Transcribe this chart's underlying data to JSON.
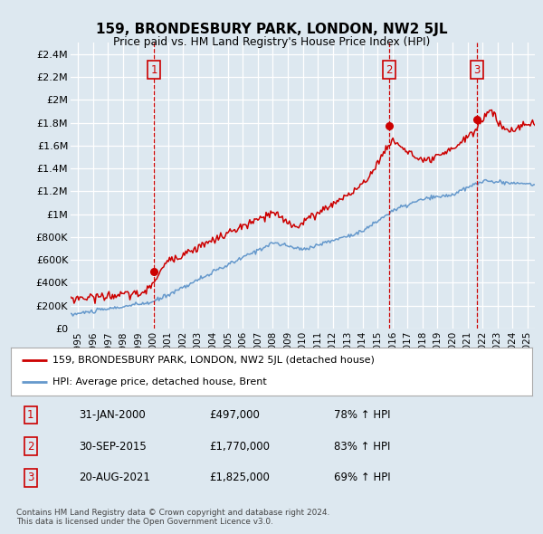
{
  "title": "159, BRONDESBURY PARK, LONDON, NW2 5JL",
  "subtitle": "Price paid vs. HM Land Registry's House Price Index (HPI)",
  "background_color": "#dde8f0",
  "plot_bg_color": "#dde8f0",
  "ylim": [
    0,
    2500000
  ],
  "yticks": [
    0,
    200000,
    400000,
    600000,
    800000,
    1000000,
    1200000,
    1400000,
    1600000,
    1800000,
    2000000,
    2200000,
    2400000
  ],
  "ytick_labels": [
    "£0",
    "£200K",
    "£400K",
    "£600K",
    "£800K",
    "£1M",
    "£1.2M",
    "£1.4M",
    "£1.6M",
    "£1.8M",
    "£2M",
    "£2.2M",
    "£2.4M"
  ],
  "xlim_start": 1994.5,
  "xlim_end": 2025.5,
  "sale_dates": [
    2000.08,
    2015.75,
    2021.63
  ],
  "sale_prices": [
    497000,
    1770000,
    1825000
  ],
  "sale_labels": [
    "1",
    "2",
    "3"
  ],
  "legend_entries": [
    "159, BRONDESBURY PARK, LONDON, NW2 5JL (detached house)",
    "HPI: Average price, detached house, Brent"
  ],
  "table_rows": [
    [
      "1",
      "31-JAN-2000",
      "£497,000",
      "78% ↑ HPI"
    ],
    [
      "2",
      "30-SEP-2015",
      "£1,770,000",
      "83% ↑ HPI"
    ],
    [
      "3",
      "20-AUG-2021",
      "£1,825,000",
      "69% ↑ HPI"
    ]
  ],
  "footer": "Contains HM Land Registry data © Crown copyright and database right 2024.\nThis data is licensed under the Open Government Licence v3.0.",
  "red_color": "#cc0000",
  "blue_color": "#6699cc",
  "grid_color": "#ffffff",
  "xtick_years": [
    1995,
    1996,
    1997,
    1998,
    1999,
    2000,
    2001,
    2002,
    2003,
    2004,
    2005,
    2006,
    2007,
    2008,
    2009,
    2010,
    2011,
    2012,
    2013,
    2014,
    2015,
    2016,
    2017,
    2018,
    2019,
    2020,
    2021,
    2022,
    2023,
    2024,
    2025
  ],
  "hpi_anchors_t": [
    1994.5,
    2000.0,
    2008.0,
    2010.0,
    2014.0,
    2016.0,
    2018.0,
    2020.0,
    2022.0,
    2025.5
  ],
  "hpi_anchors_v": [
    120000,
    230000,
    750000,
    690000,
    850000,
    1030000,
    1130000,
    1170000,
    1290000,
    1260000
  ],
  "prop_anchors_t": [
    1994.5,
    1999.5,
    2001.0,
    2008.0,
    2009.5,
    2014.0,
    2016.0,
    2018.0,
    2019.5,
    2021.5,
    2022.5,
    2023.5,
    2025.5
  ],
  "prop_anchors_v": [
    260000,
    310000,
    590000,
    1010000,
    890000,
    1250000,
    1650000,
    1450000,
    1525000,
    1725000,
    1925000,
    1725000,
    1800000
  ]
}
